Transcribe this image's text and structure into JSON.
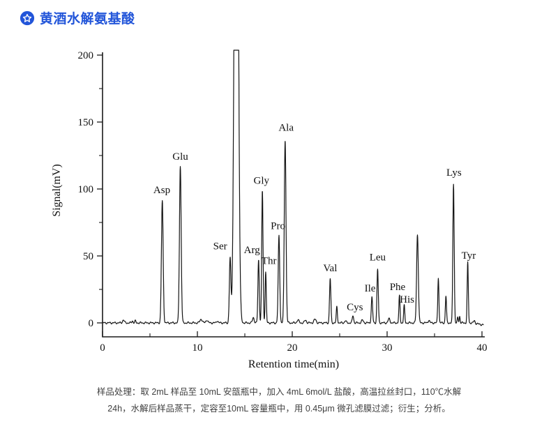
{
  "header": {
    "title": "黄酒水解氨基酸",
    "accent_color": "#2255d9",
    "icon": "star-badge-icon"
  },
  "caption": {
    "line1": "样品处理：取 2mL 样品至 10mL 安瓿瓶中，加入 4mL 6mol/L 盐酸，高温拉丝封口，110℃水解",
    "line2": "24h，水解后样品蒸干，定容至10mL 容量瓶中，用 0.45μm 微孔滤膜过滤；衍生；分析。"
  },
  "chart_data": {
    "type": "line",
    "title": "",
    "xlabel": "Retention time(min)",
    "ylabel": "Signal(mV)",
    "xlim": [
      0,
      40
    ],
    "ylim": [
      0,
      200
    ],
    "x_major_ticks": [
      0,
      10,
      20,
      30,
      40
    ],
    "x_minor_ticks": [
      5,
      15,
      25,
      35
    ],
    "y_major_ticks": [
      0,
      50,
      100,
      150,
      200
    ],
    "y_minor_ticks": [
      25,
      75,
      125,
      175
    ],
    "grid": false,
    "legend": false,
    "line_color": "#141414",
    "axis_color": "#1a1a1a",
    "peaks": [
      {
        "label": "",
        "rt_min": 2.2,
        "height_mV": 2.2,
        "sigma_min": 0.09
      },
      {
        "label": "",
        "rt_min": 3.15,
        "height_mV": 1.6,
        "sigma_min": 0.06
      },
      {
        "label": "",
        "rt_min": 3.45,
        "height_mV": 1.4,
        "sigma_min": 0.06
      },
      {
        "label": "Asp",
        "rt_min": 6.3,
        "height_mV": 91,
        "sigma_min": 0.09
      },
      {
        "label": "Glu",
        "rt_min": 8.2,
        "height_mV": 117,
        "sigma_min": 0.09
      },
      {
        "label": "",
        "rt_min": 10.4,
        "height_mV": 2.8,
        "sigma_min": 0.12
      },
      {
        "label": "",
        "rt_min": 11.0,
        "height_mV": 2.2,
        "sigma_min": 0.1
      },
      {
        "label": "",
        "rt_min": 12.1,
        "height_mV": 1.6,
        "sigma_min": 0.08
      },
      {
        "label": "Ser",
        "rt_min": 13.45,
        "height_mV": 48,
        "sigma_min": 0.08
      },
      {
        "label": "",
        "rt_min": 14.1,
        "height_mV": 600,
        "sigma_min": 0.18,
        "clipped_above_mV": 200
      },
      {
        "label": "",
        "rt_min": 15.9,
        "height_mV": 4,
        "sigma_min": 0.09
      },
      {
        "label": "Arg",
        "rt_min": 16.45,
        "height_mV": 47,
        "sigma_min": 0.07
      },
      {
        "label": "Gly",
        "rt_min": 16.85,
        "height_mV": 99,
        "sigma_min": 0.07
      },
      {
        "label": "Thr",
        "rt_min": 17.2,
        "height_mV": 38,
        "sigma_min": 0.06
      },
      {
        "label": "Pro",
        "rt_min": 18.6,
        "height_mV": 65,
        "sigma_min": 0.08
      },
      {
        "label": "Ala",
        "rt_min": 19.25,
        "height_mV": 137,
        "sigma_min": 0.09
      },
      {
        "label": "",
        "rt_min": 20.6,
        "height_mV": 2.2,
        "sigma_min": 0.1
      },
      {
        "label": "",
        "rt_min": 21.4,
        "height_mV": 2.0,
        "sigma_min": 0.1
      },
      {
        "label": "",
        "rt_min": 22.4,
        "height_mV": 2.6,
        "sigma_min": 0.12
      },
      {
        "label": "Val",
        "rt_min": 24.0,
        "height_mV": 33,
        "sigma_min": 0.07
      },
      {
        "label": "",
        "rt_min": 24.7,
        "height_mV": 12,
        "sigma_min": 0.06
      },
      {
        "label": "",
        "rt_min": 25.6,
        "height_mV": 1.6,
        "sigma_min": 0.08
      },
      {
        "label": "Cys",
        "rt_min": 26.4,
        "height_mV": 5.5,
        "sigma_min": 0.07
      },
      {
        "label": "",
        "rt_min": 27.4,
        "height_mV": 2.0,
        "sigma_min": 0.1
      },
      {
        "label": "Ile",
        "rt_min": 28.4,
        "height_mV": 19,
        "sigma_min": 0.07
      },
      {
        "label": "Leu",
        "rt_min": 29.0,
        "height_mV": 40,
        "sigma_min": 0.07
      },
      {
        "label": "",
        "rt_min": 30.2,
        "height_mV": 3.0,
        "sigma_min": 0.1
      },
      {
        "label": "Phe",
        "rt_min": 31.3,
        "height_mV": 20,
        "sigma_min": 0.06
      },
      {
        "label": "His",
        "rt_min": 31.8,
        "height_mV": 13,
        "sigma_min": 0.06
      },
      {
        "label": "",
        "rt_min": 33.2,
        "height_mV": 66,
        "sigma_min": 0.09
      },
      {
        "label": "",
        "rt_min": 34.4,
        "height_mV": 2.0,
        "sigma_min": 0.08
      },
      {
        "label": "",
        "rt_min": 35.4,
        "height_mV": 34,
        "sigma_min": 0.06
      },
      {
        "label": "",
        "rt_min": 36.2,
        "height_mV": 20,
        "sigma_min": 0.06
      },
      {
        "label": "Lys",
        "rt_min": 37.0,
        "height_mV": 104,
        "sigma_min": 0.07
      },
      {
        "label": "",
        "rt_min": 37.45,
        "height_mV": 4,
        "sigma_min": 0.05
      },
      {
        "label": "",
        "rt_min": 37.65,
        "height_mV": 5,
        "sigma_min": 0.05
      },
      {
        "label": "Tyr",
        "rt_min": 38.5,
        "height_mV": 45,
        "sigma_min": 0.06
      },
      {
        "label": "",
        "rt_min": 39.2,
        "height_mV": 2,
        "sigma_min": 0.08
      }
    ],
    "peak_labels": [
      {
        "text": "Asp",
        "t": 6.25,
        "mv": 97
      },
      {
        "text": "Glu",
        "t": 8.2,
        "mv": 122
      },
      {
        "text": "Ser",
        "t": 12.4,
        "mv": 55
      },
      {
        "text": "Arg",
        "t": 15.75,
        "mv": 52
      },
      {
        "text": "Gly",
        "t": 16.75,
        "mv": 104
      },
      {
        "text": "Thr",
        "t": 17.55,
        "mv": 44
      },
      {
        "text": "Pro",
        "t": 18.5,
        "mv": 70
      },
      {
        "text": "Ala",
        "t": 19.35,
        "mv": 143.5
      },
      {
        "text": "Val",
        "t": 24.0,
        "mv": 38.5
      },
      {
        "text": "Cys",
        "t": 26.6,
        "mv": 9.5
      },
      {
        "text": "Ile",
        "t": 28.2,
        "mv": 23.5
      },
      {
        "text": "Leu",
        "t": 29.0,
        "mv": 46.5
      },
      {
        "text": "Phe",
        "t": 31.1,
        "mv": 24.5
      },
      {
        "text": "His",
        "t": 32.1,
        "mv": 15
      },
      {
        "text": "Lys",
        "t": 37.05,
        "mv": 110
      },
      {
        "text": "Tyr",
        "t": 38.6,
        "mv": 48
      }
    ]
  }
}
